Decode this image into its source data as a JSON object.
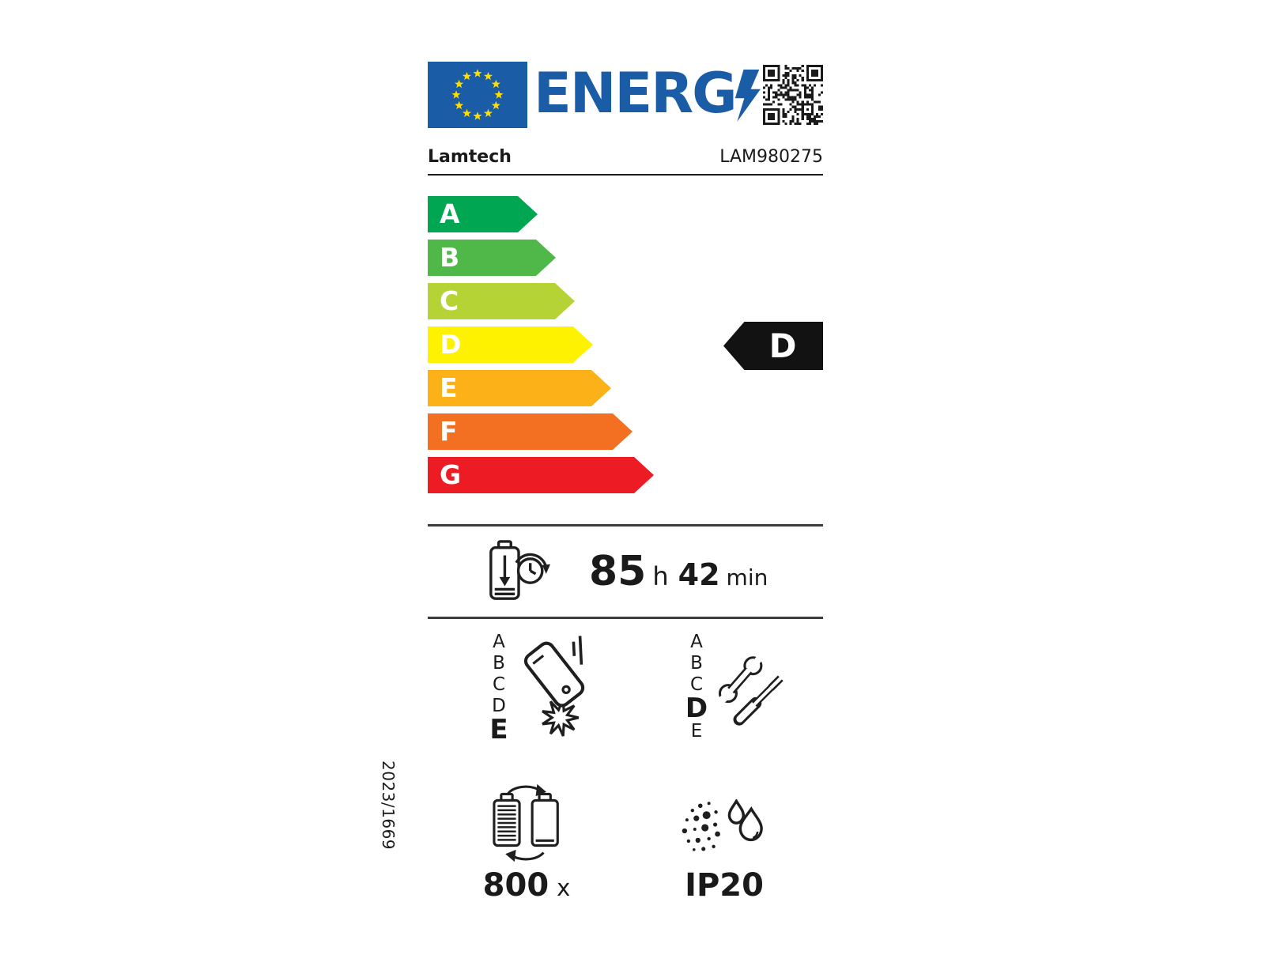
{
  "label": {
    "logo": {
      "text": "ENERG"
    },
    "brand": "Lamtech",
    "model": "LAM980275",
    "scale": {
      "classes": [
        {
          "label": "A",
          "color": "#00A651"
        },
        {
          "label": "B",
          "color": "#50B848"
        },
        {
          "label": "C",
          "color": "#B5D334"
        },
        {
          "label": "D",
          "color": "#FFF200"
        },
        {
          "label": "E",
          "color": "#FBB117"
        },
        {
          "label": "F",
          "color": "#F36F21"
        },
        {
          "label": "G",
          "color": "#ED1C24"
        }
      ],
      "selected": "D"
    },
    "endurance": {
      "hours": "85",
      "hours_unit": "h",
      "minutes": "42",
      "minutes_unit": "min"
    },
    "drop_resistance": {
      "options": [
        "A",
        "B",
        "C",
        "D",
        "E"
      ],
      "selected": "E"
    },
    "repairability": {
      "options": [
        "A",
        "B",
        "C",
        "D",
        "E"
      ],
      "selected": "D"
    },
    "battery_cycles": {
      "value": "800",
      "unit": "x"
    },
    "ingress_protection": {
      "value": "IP20"
    },
    "regulation": "2023/1669",
    "colors": {
      "eu_blue": "#1B5CA7",
      "star_yellow": "#FFDD00",
      "ink": "#1A1A1A"
    }
  }
}
